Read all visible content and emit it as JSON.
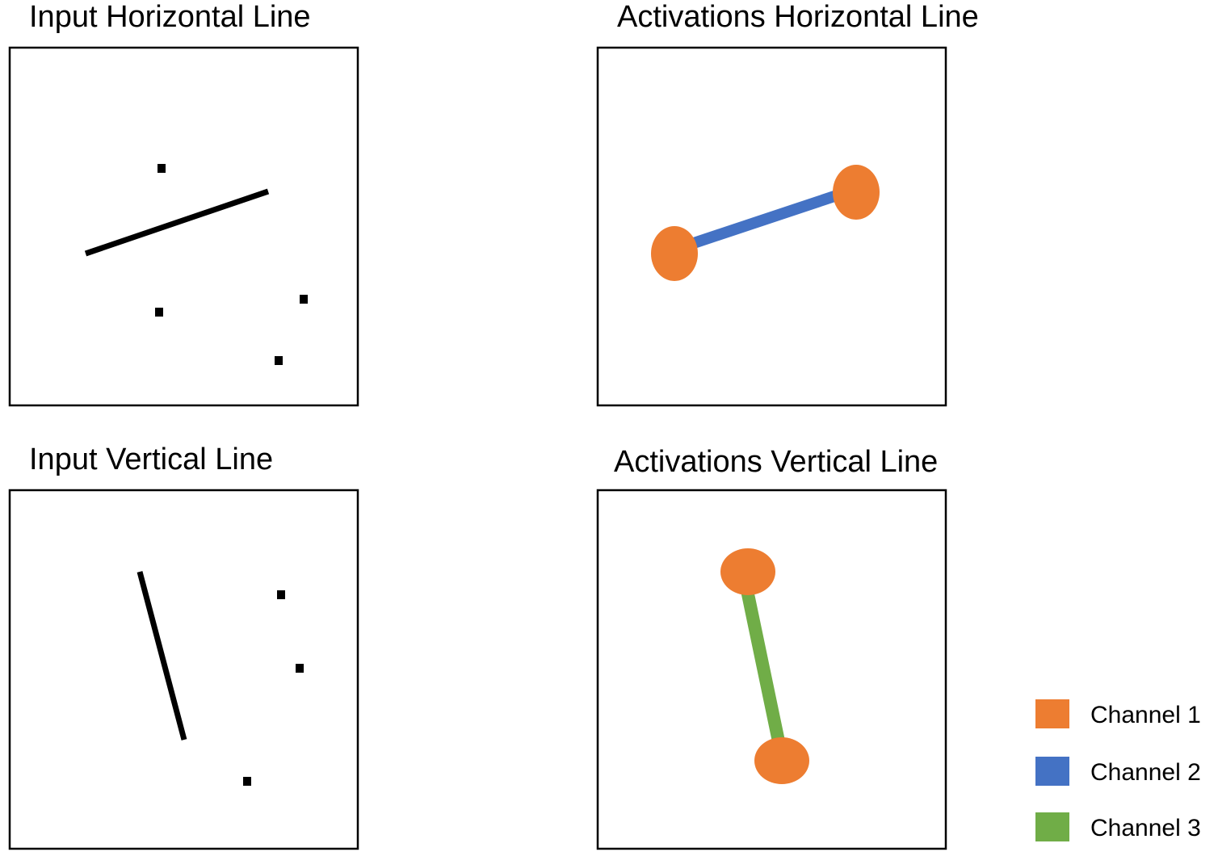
{
  "panels": {
    "input_horizontal": {
      "title": "Input Horizontal Line"
    },
    "activations_horizontal": {
      "title": "Activations Horizontal Line"
    },
    "input_vertical": {
      "title": "Input Vertical Line"
    },
    "activations_vertical": {
      "title": "Activations Vertical Line"
    }
  },
  "legend": {
    "items": [
      {
        "label": "Channel 1",
        "color": "#ED7D31"
      },
      {
        "label": "Channel 2",
        "color": "#4472C4"
      },
      {
        "label": "Channel 3",
        "color": "#70AD47"
      }
    ]
  },
  "colors": {
    "ink": "#000000",
    "channel_1": "#ED7D31",
    "channel_2": "#4472C4",
    "channel_3": "#70AD47"
  }
}
